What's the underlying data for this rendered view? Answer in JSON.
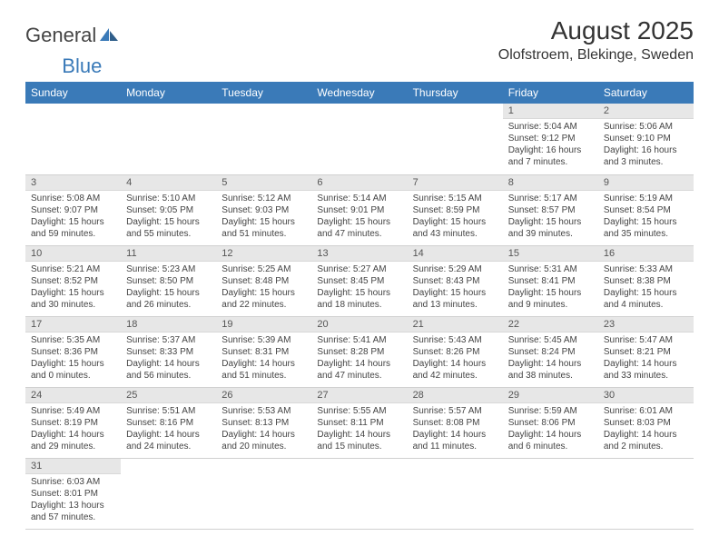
{
  "logo": {
    "text1": "General",
    "text2": "Blue"
  },
  "title": "August 2025",
  "location": "Olofstroem, Blekinge, Sweden",
  "colors": {
    "header_bg": "#3a7ab8",
    "header_fg": "#ffffff",
    "daynum_bg": "#e7e7e7",
    "border": "#d0d0d0",
    "text": "#333333"
  },
  "day_labels": [
    "Sunday",
    "Monday",
    "Tuesday",
    "Wednesday",
    "Thursday",
    "Friday",
    "Saturday"
  ],
  "weeks": [
    [
      {
        "n": "",
        "sr": "",
        "ss": "",
        "dl": ""
      },
      {
        "n": "",
        "sr": "",
        "ss": "",
        "dl": ""
      },
      {
        "n": "",
        "sr": "",
        "ss": "",
        "dl": ""
      },
      {
        "n": "",
        "sr": "",
        "ss": "",
        "dl": ""
      },
      {
        "n": "",
        "sr": "",
        "ss": "",
        "dl": ""
      },
      {
        "n": "1",
        "sr": "Sunrise: 5:04 AM",
        "ss": "Sunset: 9:12 PM",
        "dl": "Daylight: 16 hours and 7 minutes."
      },
      {
        "n": "2",
        "sr": "Sunrise: 5:06 AM",
        "ss": "Sunset: 9:10 PM",
        "dl": "Daylight: 16 hours and 3 minutes."
      }
    ],
    [
      {
        "n": "3",
        "sr": "Sunrise: 5:08 AM",
        "ss": "Sunset: 9:07 PM",
        "dl": "Daylight: 15 hours and 59 minutes."
      },
      {
        "n": "4",
        "sr": "Sunrise: 5:10 AM",
        "ss": "Sunset: 9:05 PM",
        "dl": "Daylight: 15 hours and 55 minutes."
      },
      {
        "n": "5",
        "sr": "Sunrise: 5:12 AM",
        "ss": "Sunset: 9:03 PM",
        "dl": "Daylight: 15 hours and 51 minutes."
      },
      {
        "n": "6",
        "sr": "Sunrise: 5:14 AM",
        "ss": "Sunset: 9:01 PM",
        "dl": "Daylight: 15 hours and 47 minutes."
      },
      {
        "n": "7",
        "sr": "Sunrise: 5:15 AM",
        "ss": "Sunset: 8:59 PM",
        "dl": "Daylight: 15 hours and 43 minutes."
      },
      {
        "n": "8",
        "sr": "Sunrise: 5:17 AM",
        "ss": "Sunset: 8:57 PM",
        "dl": "Daylight: 15 hours and 39 minutes."
      },
      {
        "n": "9",
        "sr": "Sunrise: 5:19 AM",
        "ss": "Sunset: 8:54 PM",
        "dl": "Daylight: 15 hours and 35 minutes."
      }
    ],
    [
      {
        "n": "10",
        "sr": "Sunrise: 5:21 AM",
        "ss": "Sunset: 8:52 PM",
        "dl": "Daylight: 15 hours and 30 minutes."
      },
      {
        "n": "11",
        "sr": "Sunrise: 5:23 AM",
        "ss": "Sunset: 8:50 PM",
        "dl": "Daylight: 15 hours and 26 minutes."
      },
      {
        "n": "12",
        "sr": "Sunrise: 5:25 AM",
        "ss": "Sunset: 8:48 PM",
        "dl": "Daylight: 15 hours and 22 minutes."
      },
      {
        "n": "13",
        "sr": "Sunrise: 5:27 AM",
        "ss": "Sunset: 8:45 PM",
        "dl": "Daylight: 15 hours and 18 minutes."
      },
      {
        "n": "14",
        "sr": "Sunrise: 5:29 AM",
        "ss": "Sunset: 8:43 PM",
        "dl": "Daylight: 15 hours and 13 minutes."
      },
      {
        "n": "15",
        "sr": "Sunrise: 5:31 AM",
        "ss": "Sunset: 8:41 PM",
        "dl": "Daylight: 15 hours and 9 minutes."
      },
      {
        "n": "16",
        "sr": "Sunrise: 5:33 AM",
        "ss": "Sunset: 8:38 PM",
        "dl": "Daylight: 15 hours and 4 minutes."
      }
    ],
    [
      {
        "n": "17",
        "sr": "Sunrise: 5:35 AM",
        "ss": "Sunset: 8:36 PM",
        "dl": "Daylight: 15 hours and 0 minutes."
      },
      {
        "n": "18",
        "sr": "Sunrise: 5:37 AM",
        "ss": "Sunset: 8:33 PM",
        "dl": "Daylight: 14 hours and 56 minutes."
      },
      {
        "n": "19",
        "sr": "Sunrise: 5:39 AM",
        "ss": "Sunset: 8:31 PM",
        "dl": "Daylight: 14 hours and 51 minutes."
      },
      {
        "n": "20",
        "sr": "Sunrise: 5:41 AM",
        "ss": "Sunset: 8:28 PM",
        "dl": "Daylight: 14 hours and 47 minutes."
      },
      {
        "n": "21",
        "sr": "Sunrise: 5:43 AM",
        "ss": "Sunset: 8:26 PM",
        "dl": "Daylight: 14 hours and 42 minutes."
      },
      {
        "n": "22",
        "sr": "Sunrise: 5:45 AM",
        "ss": "Sunset: 8:24 PM",
        "dl": "Daylight: 14 hours and 38 minutes."
      },
      {
        "n": "23",
        "sr": "Sunrise: 5:47 AM",
        "ss": "Sunset: 8:21 PM",
        "dl": "Daylight: 14 hours and 33 minutes."
      }
    ],
    [
      {
        "n": "24",
        "sr": "Sunrise: 5:49 AM",
        "ss": "Sunset: 8:19 PM",
        "dl": "Daylight: 14 hours and 29 minutes."
      },
      {
        "n": "25",
        "sr": "Sunrise: 5:51 AM",
        "ss": "Sunset: 8:16 PM",
        "dl": "Daylight: 14 hours and 24 minutes."
      },
      {
        "n": "26",
        "sr": "Sunrise: 5:53 AM",
        "ss": "Sunset: 8:13 PM",
        "dl": "Daylight: 14 hours and 20 minutes."
      },
      {
        "n": "27",
        "sr": "Sunrise: 5:55 AM",
        "ss": "Sunset: 8:11 PM",
        "dl": "Daylight: 14 hours and 15 minutes."
      },
      {
        "n": "28",
        "sr": "Sunrise: 5:57 AM",
        "ss": "Sunset: 8:08 PM",
        "dl": "Daylight: 14 hours and 11 minutes."
      },
      {
        "n": "29",
        "sr": "Sunrise: 5:59 AM",
        "ss": "Sunset: 8:06 PM",
        "dl": "Daylight: 14 hours and 6 minutes."
      },
      {
        "n": "30",
        "sr": "Sunrise: 6:01 AM",
        "ss": "Sunset: 8:03 PM",
        "dl": "Daylight: 14 hours and 2 minutes."
      }
    ],
    [
      {
        "n": "31",
        "sr": "Sunrise: 6:03 AM",
        "ss": "Sunset: 8:01 PM",
        "dl": "Daylight: 13 hours and 57 minutes."
      },
      {
        "n": "",
        "sr": "",
        "ss": "",
        "dl": ""
      },
      {
        "n": "",
        "sr": "",
        "ss": "",
        "dl": ""
      },
      {
        "n": "",
        "sr": "",
        "ss": "",
        "dl": ""
      },
      {
        "n": "",
        "sr": "",
        "ss": "",
        "dl": ""
      },
      {
        "n": "",
        "sr": "",
        "ss": "",
        "dl": ""
      },
      {
        "n": "",
        "sr": "",
        "ss": "",
        "dl": ""
      }
    ]
  ]
}
